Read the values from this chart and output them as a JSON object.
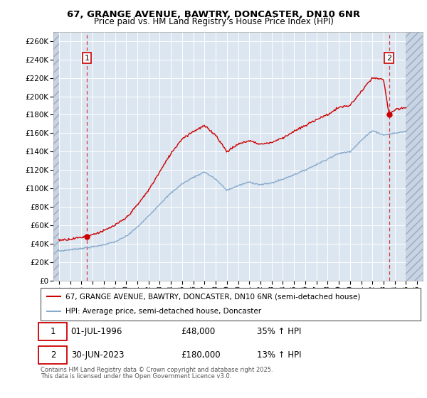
{
  "title1": "67, GRANGE AVENUE, BAWTRY, DONCASTER, DN10 6NR",
  "title2": "Price paid vs. HM Land Registry's House Price Index (HPI)",
  "legend_line1": "67, GRANGE AVENUE, BAWTRY, DONCASTER, DN10 6NR (semi-detached house)",
  "legend_line2": "HPI: Average price, semi-detached house, Doncaster",
  "footnote1": "Contains HM Land Registry data © Crown copyright and database right 2025.",
  "footnote2": "This data is licensed under the Open Government Licence v3.0.",
  "ann1_label": "1",
  "ann1_date": "01-JUL-1996",
  "ann1_price": "£48,000",
  "ann1_change": "35% ↑ HPI",
  "ann2_label": "2",
  "ann2_date": "30-JUN-2023",
  "ann2_price": "£180,000",
  "ann2_change": "13% ↑ HPI",
  "sale1_x": 1996.5,
  "sale1_y": 48000,
  "sale2_x": 2023.5,
  "sale2_y": 180000,
  "ylim": [
    0,
    270000
  ],
  "xlim_start": 1993.5,
  "xlim_end": 2026.5,
  "data_start": 1994,
  "data_end": 2025,
  "yticks": [
    0,
    20000,
    40000,
    60000,
    80000,
    100000,
    120000,
    140000,
    160000,
    180000,
    200000,
    220000,
    240000,
    260000
  ],
  "xticks": [
    1994,
    1995,
    1996,
    1997,
    1998,
    1999,
    2000,
    2001,
    2002,
    2003,
    2004,
    2005,
    2006,
    2007,
    2008,
    2009,
    2010,
    2011,
    2012,
    2013,
    2014,
    2015,
    2016,
    2017,
    2018,
    2019,
    2020,
    2021,
    2022,
    2023,
    2024,
    2025,
    2026
  ],
  "property_color": "#cc0000",
  "hpi_color": "#88aacc",
  "bg_color": "#dce6f1",
  "hatch_bg": "#c8d4e3",
  "grid_color": "#ffffff",
  "ann_box_color": "#cc0000",
  "hpi_anchors_x": [
    1994,
    1995,
    1996,
    1997,
    1998,
    1999,
    2000,
    2001,
    2002,
    2003,
    2004,
    2005,
    2006,
    2007,
    2008,
    2009,
    2010,
    2011,
    2012,
    2013,
    2014,
    2015,
    2016,
    2017,
    2018,
    2019,
    2020,
    2021,
    2022,
    2023,
    2024,
    2025
  ],
  "hpi_anchors_y": [
    32000,
    33500,
    35000,
    36500,
    39000,
    42000,
    48000,
    58000,
    70000,
    83000,
    95000,
    105000,
    112000,
    118000,
    110000,
    98000,
    103000,
    107000,
    104000,
    106000,
    110000,
    115000,
    120000,
    126000,
    132000,
    138000,
    140000,
    152000,
    163000,
    158000,
    160000,
    162000
  ],
  "prop_anchors_x": [
    1994,
    1995,
    1996,
    1996.5,
    1997,
    1998,
    1999,
    2000,
    2001,
    2002,
    2003,
    2004,
    2005,
    2006,
    2007,
    2008,
    2009,
    2010,
    2011,
    2012,
    2013,
    2014,
    2015,
    2016,
    2017,
    2018,
    2019,
    2020,
    2021,
    2022,
    2023,
    2023.5,
    2024,
    2025
  ],
  "prop_anchors_y": [
    44000,
    45000,
    47000,
    48000,
    50000,
    54000,
    60000,
    68000,
    82000,
    98000,
    118000,
    138000,
    154000,
    162000,
    168000,
    158000,
    140000,
    148000,
    152000,
    148000,
    150000,
    155000,
    162000,
    168000,
    175000,
    180000,
    188000,
    190000,
    205000,
    220000,
    218000,
    180000,
    185000,
    188000
  ]
}
